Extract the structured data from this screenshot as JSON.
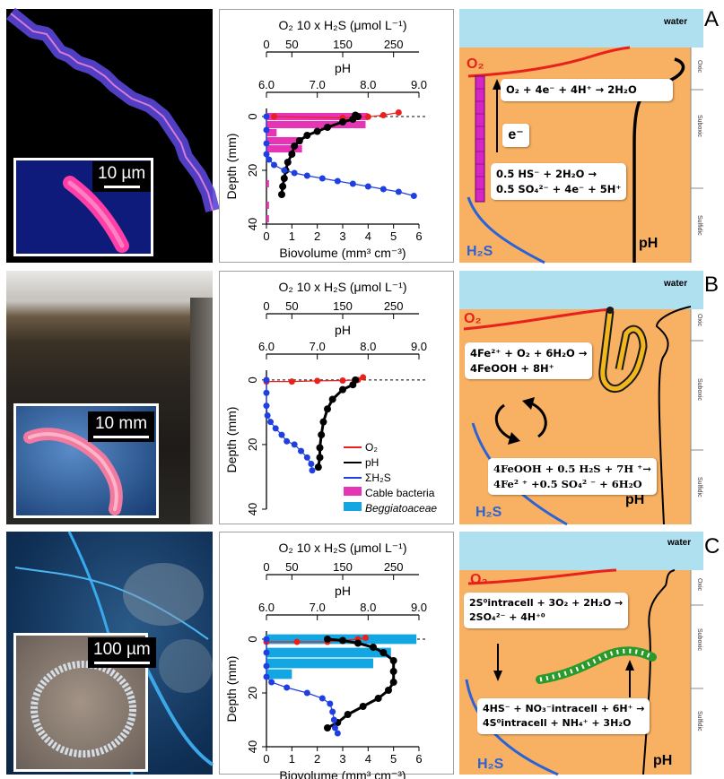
{
  "panels": [
    {
      "letter": "A",
      "scale_label": "10 µm",
      "schematic": {
        "water_label": "water",
        "o2_label": "O₂",
        "h2s_label": "H₂S",
        "ph_label": "pH",
        "electron_label": "e⁻",
        "zones": [
          "Oxic",
          "Suboxic",
          "Sulfidic"
        ],
        "eq1": "O₂ + 4e⁻ + 4H⁺ → 2H₂O",
        "eq2_line1": "0.5 HS⁻ + 2H₂O →",
        "eq2_line2": "0.5 SO₄²⁻ + 4e⁻ + 5H⁺"
      }
    },
    {
      "letter": "B",
      "scale_label": "10 mm",
      "schematic": {
        "water_label": "water",
        "o2_label": "O₂",
        "h2s_label": "H₂S",
        "ph_label": "pH",
        "zones": [
          "Oxic",
          "Suboxic",
          "Sulfidic"
        ],
        "eq1_line1": "4Fe²⁺ + O₂ + 6H₂O →",
        "eq1_line2": "4FeOOH + 8H⁺",
        "eq2_line1": "4FeOOH + 0.5 H₂S + 7H ⁺→",
        "eq2_line2": "4Fe² ⁺ +0.5 SO₄² ⁻ + 6H₂O"
      }
    },
    {
      "letter": "C",
      "scale_label": "100 µm",
      "schematic": {
        "water_label": "water",
        "o2_label": "O₂",
        "h2s_label": "H₂S",
        "ph_label": "pH",
        "zones": [
          "Oxic",
          "Suboxic",
          "Sulfidic"
        ],
        "eq1_line1": "2S⁰intracell + 3O₂ + 2H₂O →",
        "eq1_line2": "2SO₄²⁻ + 4H⁺⁰",
        "eq2_line1": "4HS⁻ + NO₃⁻intracell + 6H⁺ →",
        "eq2_line2": "4S⁰intracell + NH₄⁺ + 3H₂O"
      }
    }
  ],
  "legend": [
    "O₂",
    "pH",
    "ΣH₂S",
    "Cable bacteria",
    "Beggiatoaceae"
  ],
  "colors": {
    "o2": "#e8211d",
    "ph": "#000000",
    "h2s": "#1f3fe0",
    "cable": "#e535b5",
    "beggia": "#12a7e3",
    "sediment": "#f8b062",
    "water": "#aee0f0"
  },
  "chart_data": [
    {
      "type": "scatter",
      "title": "",
      "top_axis1_label": "O₂   10 x H₂S (μmol L⁻¹)",
      "top_axis1_ticks": [
        0,
        50,
        150,
        250
      ],
      "top_axis2_label": "pH",
      "top_axis2_ticks": [
        "6.0",
        "7.0",
        "8.0",
        "9.0"
      ],
      "xlabel": "Biovolume (mm³ cm⁻³)",
      "xticks": [
        0,
        1,
        2,
        3,
        4,
        5,
        6
      ],
      "ylabel": "Depth (mm)",
      "yticks": [
        0,
        20,
        40
      ],
      "ylim": [
        -3,
        40
      ],
      "series": [
        {
          "name": "O₂",
          "axis": "o2",
          "points": [
            [
              15,
              0
            ],
            [
              150,
              0.5
            ],
            [
              200,
              0.1
            ],
            [
              230,
              -0.5
            ],
            [
              260,
              -1.5
            ]
          ]
        },
        {
          "name": "pH",
          "axis": "ph",
          "points": [
            [
              7.75,
              -0.5
            ],
            [
              7.8,
              0
            ],
            [
              7.7,
              1
            ],
            [
              7.5,
              2
            ],
            [
              7.2,
              4
            ],
            [
              7.0,
              5.5
            ],
            [
              6.8,
              7
            ],
            [
              6.65,
              9
            ],
            [
              6.55,
              11
            ],
            [
              6.5,
              14
            ],
            [
              6.42,
              17
            ],
            [
              6.38,
              20
            ],
            [
              6.35,
              23
            ],
            [
              6.32,
              26
            ],
            [
              6.3,
              29
            ]
          ]
        },
        {
          "name": "ΣH₂S",
          "axis": "o2",
          "points": [
            [
              0,
              0
            ],
            [
              0,
              5
            ],
            [
              0,
              10
            ],
            [
              0,
              14
            ],
            [
              5,
              16
            ],
            [
              15,
              18
            ],
            [
              35,
              20
            ],
            [
              55,
              21
            ],
            [
              80,
              22
            ],
            [
              110,
              23
            ],
            [
              140,
              24
            ],
            [
              170,
              25
            ],
            [
              200,
              26
            ],
            [
              230,
              27
            ],
            [
              260,
              28
            ],
            [
              290,
              29.5
            ]
          ]
        }
      ],
      "bars": [
        {
          "name": "Cable bacteria",
          "depth": 0,
          "value": 4.0
        },
        {
          "name": "Cable bacteria",
          "depth": 3,
          "value": 3.9
        },
        {
          "name": "Cable bacteria",
          "depth": 6,
          "value": 0.4
        },
        {
          "name": "Cable bacteria",
          "depth": 9,
          "value": 1.4
        },
        {
          "name": "Cable bacteria",
          "depth": 12,
          "value": 1.4
        },
        {
          "name": "Cable bacteria",
          "depth": 15,
          "value": 0.1
        },
        {
          "name": "Cable bacteria",
          "depth": 25,
          "value": 0.1
        },
        {
          "name": "Cable bacteria",
          "depth": 33,
          "value": 0.1
        },
        {
          "name": "Cable bacteria",
          "depth": 38,
          "value": 0.1
        }
      ]
    },
    {
      "type": "scatter",
      "title": "",
      "top_axis1_label": "O₂   10 x H₂S (μmol L⁻¹)",
      "top_axis1_ticks": [
        0,
        50,
        150,
        250
      ],
      "top_axis2_label": "pH",
      "top_axis2_ticks": [
        "6.0",
        "7.0",
        "8.0",
        "9.0"
      ],
      "ylabel": "Depth (mm)",
      "yticks": [
        0,
        20,
        40
      ],
      "ylim": [
        -3,
        40
      ],
      "series": [
        {
          "name": "O₂",
          "axis": "o2",
          "points": [
            [
              0,
              0.5
            ],
            [
              50,
              0.5
            ],
            [
              100,
              0.3
            ],
            [
              150,
              0.2
            ],
            [
              180,
              0
            ],
            [
              190,
              -0.8
            ]
          ]
        },
        {
          "name": "pH",
          "axis": "ph",
          "points": [
            [
              7.75,
              0
            ],
            [
              7.7,
              1.5
            ],
            [
              7.5,
              3
            ],
            [
              7.3,
              6
            ],
            [
              7.2,
              9
            ],
            [
              7.12,
              13
            ],
            [
              7.08,
              17
            ],
            [
              7.05,
              21
            ],
            [
              7.05,
              24
            ],
            [
              7.02,
              27
            ]
          ]
        },
        {
          "name": "ΣH₂S",
          "axis": "o2",
          "points": [
            [
              0,
              0
            ],
            [
              0,
              4
            ],
            [
              0,
              8
            ],
            [
              2,
              11
            ],
            [
              8,
              13
            ],
            [
              18,
              15
            ],
            [
              30,
              17
            ],
            [
              40,
              19
            ],
            [
              55,
              20
            ],
            [
              68,
              22
            ],
            [
              80,
              24
            ],
            [
              88,
              26
            ],
            [
              90,
              28
            ]
          ]
        }
      ]
    },
    {
      "type": "scatter",
      "title": "",
      "top_axis1_label": "O₂   10 x H₂S (μmol L⁻¹)",
      "top_axis1_ticks": [
        0,
        50,
        150,
        250
      ],
      "top_axis2_label": "pH",
      "top_axis2_ticks": [
        "6.0",
        "7.0",
        "8.0",
        "9.0"
      ],
      "xlabel": "Biovolume (mm³ cm⁻³)",
      "xticks": [
        0,
        1,
        2,
        3,
        4,
        5,
        6
      ],
      "ylabel": "Depth (mm)",
      "yticks": [
        0,
        20,
        40
      ],
      "ylim": [
        -3,
        40
      ],
      "series": [
        {
          "name": "O₂",
          "axis": "o2",
          "points": [
            [
              0,
              1
            ],
            [
              60,
              1
            ],
            [
              120,
              1
            ],
            [
              150,
              0.5
            ],
            [
              180,
              0
            ],
            [
              195,
              -0.5
            ]
          ]
        },
        {
          "name": "pH",
          "axis": "ph",
          "points": [
            [
              7.2,
              0
            ],
            [
              7.5,
              0.5
            ],
            [
              7.8,
              1.5
            ],
            [
              8.1,
              3
            ],
            [
              8.3,
              5
            ],
            [
              8.5,
              8
            ],
            [
              8.5,
              12
            ],
            [
              8.5,
              16
            ],
            [
              8.4,
              19
            ],
            [
              8.2,
              22
            ],
            [
              7.9,
              25
            ],
            [
              7.6,
              28
            ],
            [
              7.4,
              31
            ],
            [
              7.2,
              33
            ]
          ]
        },
        {
          "name": "ΣH₂S",
          "axis": "o2",
          "points": [
            [
              0,
              0
            ],
            [
              0,
              5
            ],
            [
              0,
              10
            ],
            [
              0,
              14
            ],
            [
              10,
              16
            ],
            [
              40,
              18
            ],
            [
              80,
              20
            ],
            [
              110,
              22
            ],
            [
              125,
              24
            ],
            [
              130,
              27
            ],
            [
              133,
              30
            ],
            [
              135,
              33
            ],
            [
              140,
              35
            ]
          ]
        }
      ],
      "bars": [
        {
          "name": "Beggiatoaceae",
          "depth": 0,
          "value": 5.9
        },
        {
          "name": "Beggiatoaceae",
          "depth": 5,
          "value": 4.9
        },
        {
          "name": "Beggiatoaceae",
          "depth": 9,
          "value": 4.2
        },
        {
          "name": "Beggiatoaceae",
          "depth": 13,
          "value": 1.0
        }
      ]
    }
  ]
}
